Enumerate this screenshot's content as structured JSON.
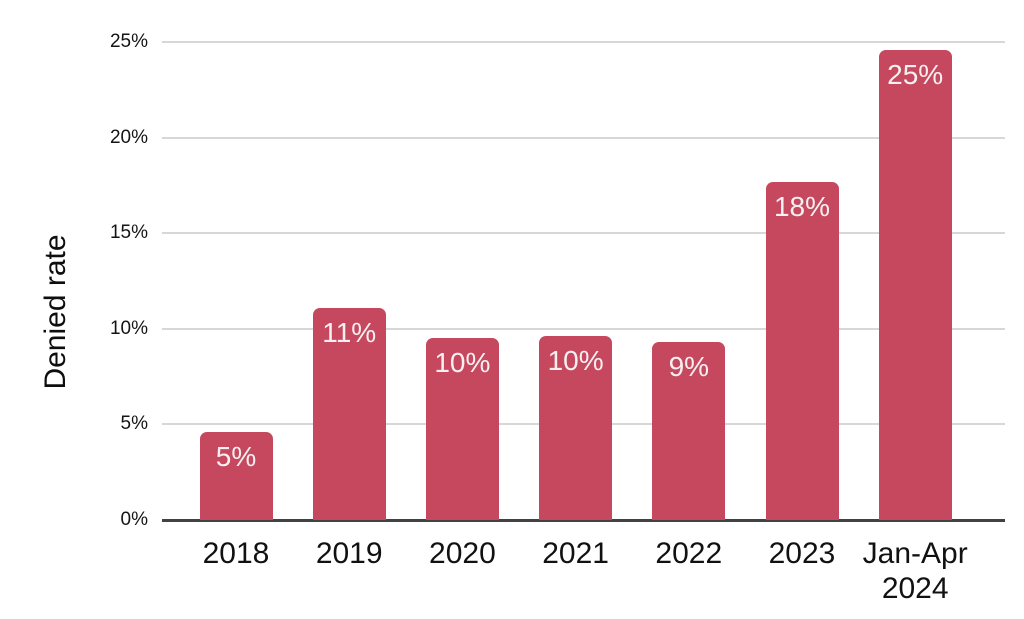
{
  "chart_data": {
    "type": "bar",
    "title": "",
    "xlabel": "",
    "ylabel": "Denied rate",
    "categories": [
      "2018",
      "2019",
      "2020",
      "2021",
      "2022",
      "2023",
      "Jan-Apr\n2024"
    ],
    "series": [
      {
        "name": "Denied rate",
        "values": [
          4.6,
          11.1,
          9.5,
          9.6,
          9.3,
          17.7,
          24.6
        ],
        "labels": [
          "5%",
          "11%",
          "10%",
          "10%",
          "9%",
          "18%",
          "25%"
        ]
      }
    ],
    "ylim": [
      0,
      25
    ],
    "yticks": [
      {
        "label": "0%",
        "value": 0
      },
      {
        "label": "5%",
        "value": 5
      },
      {
        "label": "10%",
        "value": 10
      },
      {
        "label": "15%",
        "value": 15
      },
      {
        "label": "20%",
        "value": 20
      },
      {
        "label": "25%",
        "value": 25
      }
    ],
    "grid": true,
    "legend": "none",
    "colors": {
      "bar": "#c5485f",
      "bar_label": "#f7f0f1",
      "gridline": "#d7d7d7",
      "axis_line": "#424242",
      "background": "#ffffff"
    }
  }
}
